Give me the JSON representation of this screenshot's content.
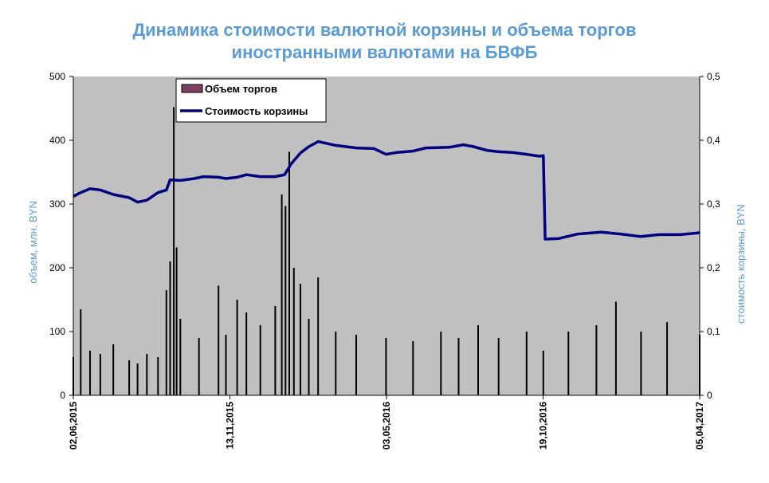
{
  "chart_data": {
    "type": "bar+line",
    "title_lines": [
      "Динамика стоимости валютной корзины и объема торгов",
      "иностранными валютами на БВФБ"
    ],
    "y_left": {
      "label": "объем, млн. BYN",
      "ticks": [
        "0",
        "100",
        "200",
        "300",
        "400",
        "500"
      ],
      "range": [
        0,
        500
      ]
    },
    "y_right": {
      "label": "стоимость корзины, BYN",
      "ticks": [
        "0",
        "0,1",
        "0,2",
        "0,3",
        "0,4",
        "0,5"
      ],
      "range": [
        0,
        0.5
      ]
    },
    "x_ticks": [
      "02,06,2015",
      "13,11,2015",
      "03,05,2016",
      "19,10,2016",
      "05,04,2017"
    ],
    "x_range": [
      "2015-06-02",
      "2017-04-05"
    ],
    "legend": {
      "placement": "top-left",
      "entries": [
        {
          "name": "Объем торгов",
          "kind": "bar",
          "color": "#7f3f5f"
        },
        {
          "name": "Стоимость  корзины",
          "kind": "line",
          "color": "#000080"
        }
      ]
    },
    "series": [
      {
        "name": "Объем торгов",
        "kind": "bar",
        "color": "#000000",
        "points": [
          [
            "2015-06-02",
            60
          ],
          [
            "2015-06-10",
            135
          ],
          [
            "2015-06-20",
            70
          ],
          [
            "2015-07-01",
            65
          ],
          [
            "2015-07-15",
            80
          ],
          [
            "2015-08-01",
            55
          ],
          [
            "2015-08-10",
            50
          ],
          [
            "2015-08-20",
            65
          ],
          [
            "2015-09-01",
            60
          ],
          [
            "2015-09-10",
            165
          ],
          [
            "2015-09-14",
            210
          ],
          [
            "2015-09-18",
            452
          ],
          [
            "2015-09-21",
            232
          ],
          [
            "2015-09-25",
            120
          ],
          [
            "2015-10-15",
            90
          ],
          [
            "2015-11-05",
            172
          ],
          [
            "2015-11-13",
            95
          ],
          [
            "2015-11-25",
            150
          ],
          [
            "2015-12-05",
            130
          ],
          [
            "2015-12-20",
            110
          ],
          [
            "2016-01-05",
            140
          ],
          [
            "2016-01-12",
            315
          ],
          [
            "2016-01-16",
            297
          ],
          [
            "2016-01-20",
            382
          ],
          [
            "2016-01-25",
            200
          ],
          [
            "2016-02-01",
            175
          ],
          [
            "2016-02-10",
            120
          ],
          [
            "2016-02-20",
            185
          ],
          [
            "2016-03-10",
            100
          ],
          [
            "2016-04-01",
            95
          ],
          [
            "2016-05-03",
            90
          ],
          [
            "2016-06-01",
            85
          ],
          [
            "2016-07-01",
            100
          ],
          [
            "2016-07-20",
            90
          ],
          [
            "2016-08-10",
            110
          ],
          [
            "2016-09-01",
            90
          ],
          [
            "2016-10-01",
            100
          ],
          [
            "2016-10-19",
            70
          ],
          [
            "2016-11-15",
            100
          ],
          [
            "2016-12-15",
            110
          ],
          [
            "2017-01-05",
            147
          ],
          [
            "2017-02-01",
            100
          ],
          [
            "2017-03-01",
            115
          ],
          [
            "2017-04-05",
            95
          ]
        ]
      },
      {
        "name": "Стоимость  корзины",
        "kind": "line",
        "color": "#000080",
        "points": [
          [
            "2015-06-02",
            0.312
          ],
          [
            "2015-06-10",
            0.318
          ],
          [
            "2015-06-20",
            0.324
          ],
          [
            "2015-07-01",
            0.322
          ],
          [
            "2015-07-15",
            0.315
          ],
          [
            "2015-08-01",
            0.31
          ],
          [
            "2015-08-10",
            0.303
          ],
          [
            "2015-08-20",
            0.306
          ],
          [
            "2015-09-01",
            0.318
          ],
          [
            "2015-09-10",
            0.322
          ],
          [
            "2015-09-14",
            0.338
          ],
          [
            "2015-09-25",
            0.337
          ],
          [
            "2015-10-10",
            0.34
          ],
          [
            "2015-10-20",
            0.343
          ],
          [
            "2015-11-05",
            0.342
          ],
          [
            "2015-11-13",
            0.34
          ],
          [
            "2015-11-25",
            0.342
          ],
          [
            "2015-12-05",
            0.346
          ],
          [
            "2015-12-20",
            0.343
          ],
          [
            "2016-01-05",
            0.343
          ],
          [
            "2016-01-15",
            0.346
          ],
          [
            "2016-01-22",
            0.363
          ],
          [
            "2016-02-01",
            0.38
          ],
          [
            "2016-02-10",
            0.39
          ],
          [
            "2016-02-20",
            0.398
          ],
          [
            "2016-03-10",
            0.392
          ],
          [
            "2016-04-01",
            0.388
          ],
          [
            "2016-04-20",
            0.387
          ],
          [
            "2016-05-03",
            0.378
          ],
          [
            "2016-05-15",
            0.381
          ],
          [
            "2016-06-01",
            0.383
          ],
          [
            "2016-06-15",
            0.388
          ],
          [
            "2016-07-10",
            0.389
          ],
          [
            "2016-07-25",
            0.393
          ],
          [
            "2016-08-05",
            0.39
          ],
          [
            "2016-08-20",
            0.384
          ],
          [
            "2016-09-01",
            0.382
          ],
          [
            "2016-09-15",
            0.381
          ],
          [
            "2016-10-01",
            0.378
          ],
          [
            "2016-10-15",
            0.375
          ],
          [
            "2016-10-19",
            0.376
          ],
          [
            "2016-10-21",
            0.245
          ],
          [
            "2016-11-05",
            0.246
          ],
          [
            "2016-11-25",
            0.253
          ],
          [
            "2016-12-20",
            0.256
          ],
          [
            "2017-01-10",
            0.253
          ],
          [
            "2017-02-01",
            0.249
          ],
          [
            "2017-02-20",
            0.252
          ],
          [
            "2017-03-15",
            0.252
          ],
          [
            "2017-04-05",
            0.255
          ]
        ]
      }
    ],
    "colors": {
      "plot_background": "#c0c0c0",
      "title": "#5b9bd5",
      "axis_label": "#5b9bd5"
    }
  }
}
